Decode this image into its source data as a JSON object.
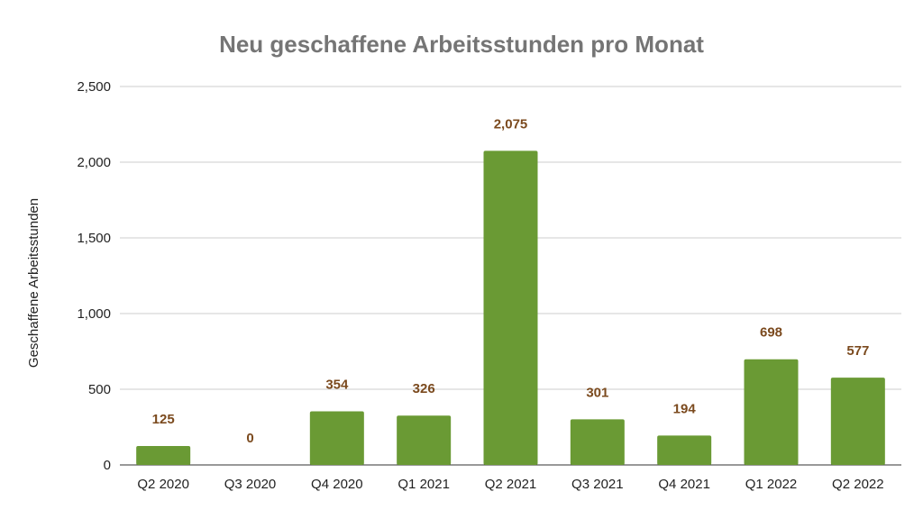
{
  "chart_data": {
    "type": "bar",
    "title": "Neu geschaffene Arbeitsstunden pro Monat",
    "xlabel": "",
    "ylabel": "Geschaffene Arbeitsstunden",
    "categories": [
      "Q2 2020",
      "Q3 2020",
      "Q4 2020",
      "Q1 2021",
      "Q2 2021",
      "Q3 2021",
      "Q4 2021",
      "Q1 2022",
      "Q2 2022"
    ],
    "values": [
      125,
      0,
      354,
      326,
      2075,
      301,
      194,
      698,
      577
    ],
    "data_labels": [
      "125",
      "0",
      "354",
      "326",
      "2,075",
      "301",
      "194",
      "698",
      "577"
    ],
    "ylim": [
      0,
      2500
    ],
    "yticks": [
      0,
      500,
      1000,
      1500,
      2000,
      2500
    ],
    "ytick_labels": [
      "0",
      "500",
      "1,000",
      "1,500",
      "2,000",
      "2,500"
    ],
    "grid": true,
    "legend": "none",
    "colors": {
      "bar": "#6a9a34",
      "label": "#7b4a1e",
      "title": "#757575"
    }
  }
}
